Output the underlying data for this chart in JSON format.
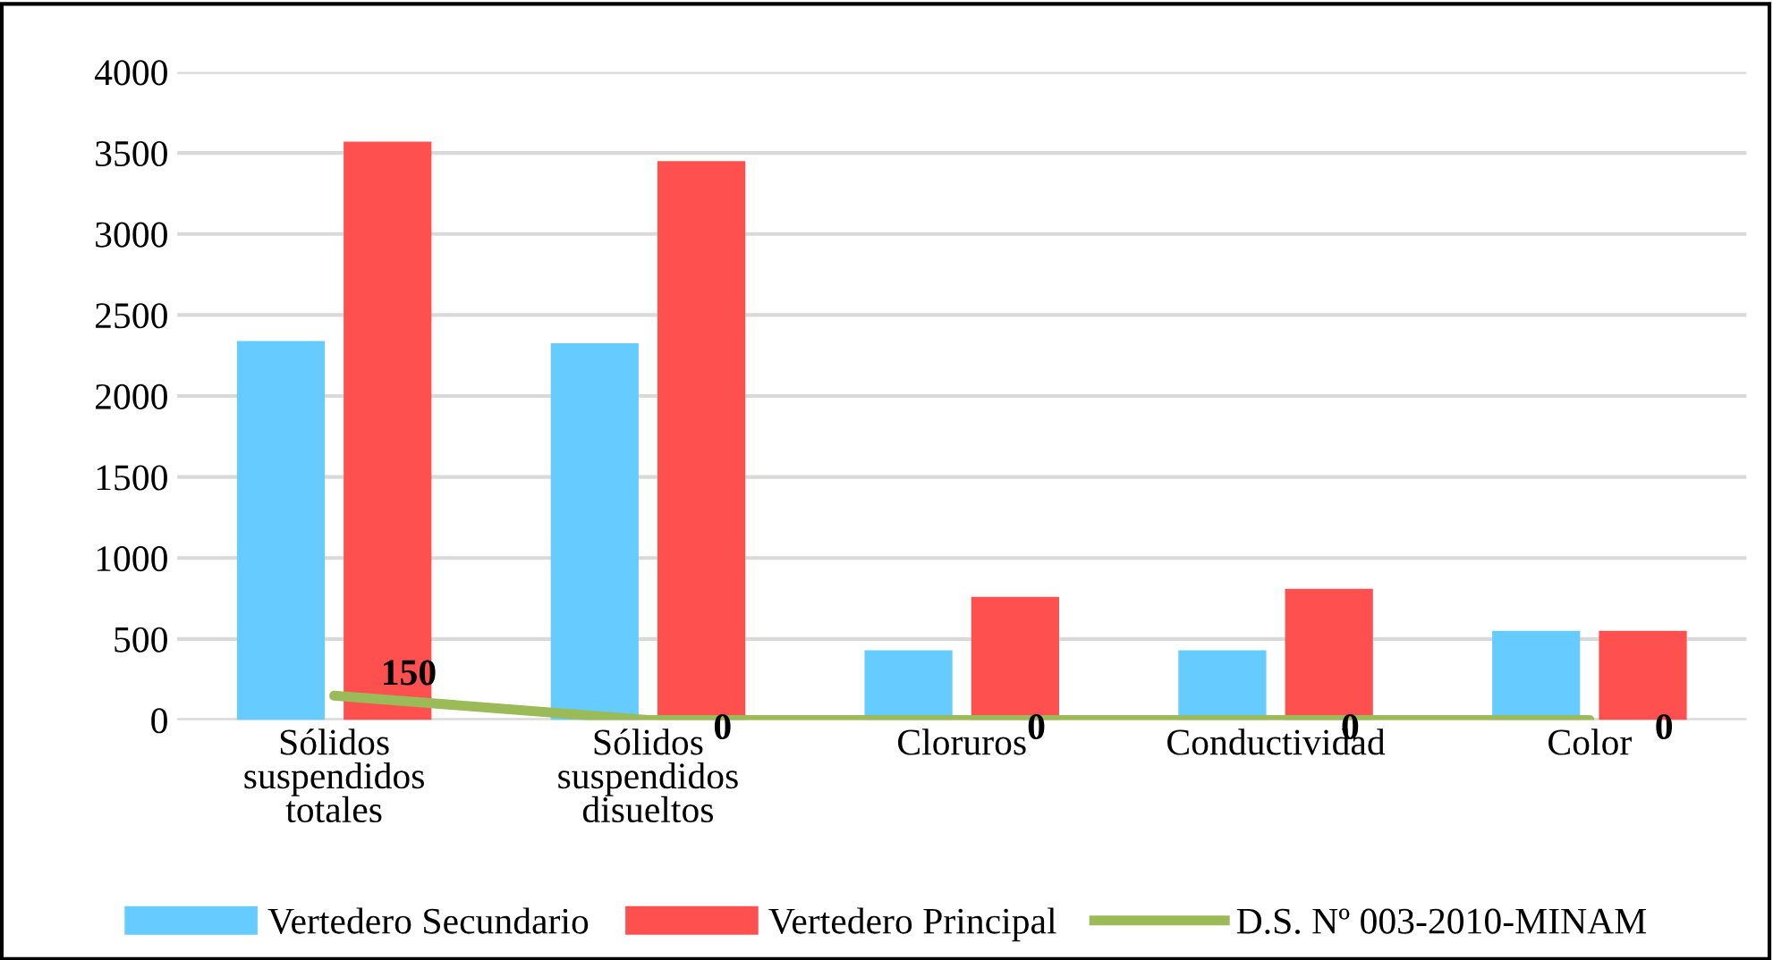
{
  "chart_data": {
    "type": "bar",
    "categories": [
      "Sólidos\nsuspendidos\ntotales",
      "Sólidos\nsuspendidos\ndisueltos",
      "Cloruros",
      "Conductividad",
      "Color"
    ],
    "series": [
      {
        "name": "Vertedero Secundario",
        "color": "#66ccff",
        "values": [
          2340,
          2325,
          430,
          430,
          550
        ]
      },
      {
        "name": "Vertedero Principal",
        "color": "#ff5050",
        "values": [
          3570,
          3450,
          760,
          810,
          550
        ]
      },
      {
        "name": "D.S. Nº 003-2010-MINAM",
        "type": "line",
        "color": "#9bbb59",
        "values": [
          150,
          0,
          0,
          0,
          0
        ],
        "value_labels": [
          "150",
          "0",
          "0",
          "0",
          "0"
        ]
      }
    ],
    "ylim": [
      0,
      4000
    ],
    "yticks": [
      0,
      500,
      1000,
      1500,
      2000,
      2500,
      3000,
      3500,
      4000
    ],
    "grid": "y",
    "legend": "bottom"
  }
}
